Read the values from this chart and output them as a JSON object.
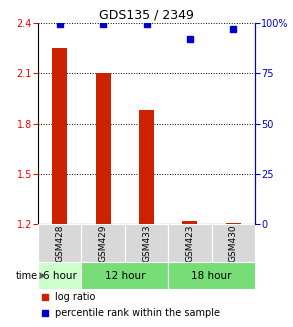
{
  "title": "GDS135 / 2349",
  "samples": [
    "GSM428",
    "GSM429",
    "GSM433",
    "GSM423",
    "GSM430"
  ],
  "log_ratios": [
    2.25,
    2.1,
    1.88,
    1.22,
    1.205
  ],
  "percentile_ranks": [
    99.5,
    99.5,
    99.5,
    92,
    97
  ],
  "ylim_left": [
    1.2,
    2.4
  ],
  "ylim_right": [
    0,
    100
  ],
  "yticks_left": [
    1.2,
    1.5,
    1.8,
    2.1,
    2.4
  ],
  "yticks_right": [
    0,
    25,
    50,
    75,
    100
  ],
  "bar_color": "#cc2200",
  "dot_color": "#0000cc",
  "bar_width": 0.35,
  "time_groups": [
    {
      "label": "6 hour",
      "start": 0,
      "end": 1,
      "color": "#ccffcc"
    },
    {
      "label": "12 hour",
      "start": 1,
      "end": 3,
      "color": "#77dd77"
    },
    {
      "label": "18 hour",
      "start": 3,
      "end": 5,
      "color": "#77dd77"
    }
  ],
  "sample_box_color": "#d8d8d8",
  "legend_red_label": "log ratio",
  "legend_blue_label": "percentile rank within the sample"
}
